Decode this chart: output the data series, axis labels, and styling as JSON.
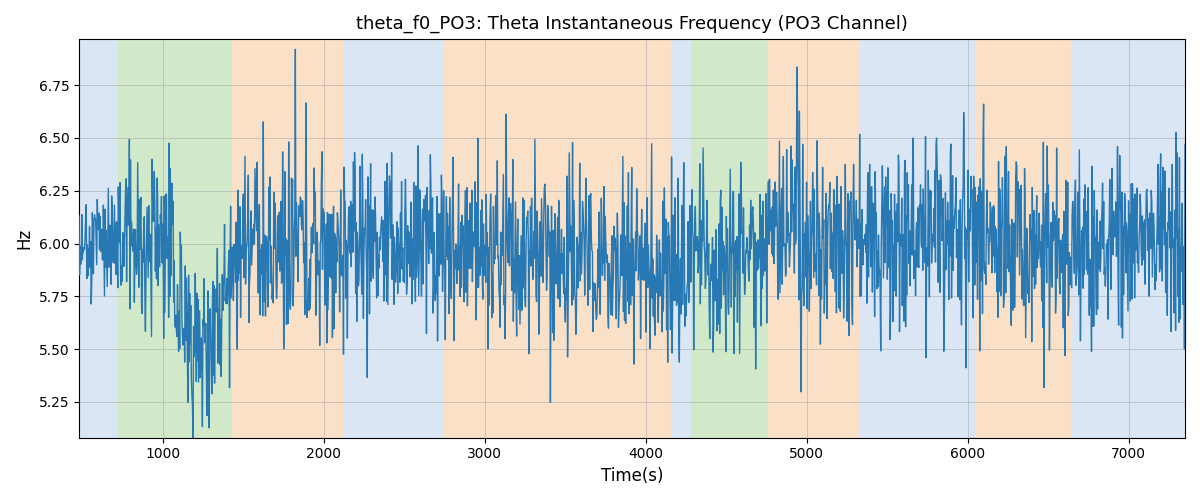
{
  "title": "theta_f0_PO3: Theta Instantaneous Frequency (PO3 Channel)",
  "xlabel": "Time(s)",
  "ylabel": "Hz",
  "xlim": [
    480,
    7350
  ],
  "ylim": [
    5.08,
    6.97
  ],
  "background_bands": [
    {
      "xmin": 480,
      "xmax": 720,
      "color": "#adc9e8",
      "alpha": 0.45
    },
    {
      "xmin": 720,
      "xmax": 1430,
      "color": "#90c878",
      "alpha": 0.4
    },
    {
      "xmin": 1430,
      "xmax": 2120,
      "color": "#f5c89a",
      "alpha": 0.55
    },
    {
      "xmin": 2120,
      "xmax": 2750,
      "color": "#adc9e8",
      "alpha": 0.45
    },
    {
      "xmin": 2750,
      "xmax": 4160,
      "color": "#f5c89a",
      "alpha": 0.55
    },
    {
      "xmin": 4160,
      "xmax": 4280,
      "color": "#adc9e8",
      "alpha": 0.45
    },
    {
      "xmin": 4280,
      "xmax": 4760,
      "color": "#90c878",
      "alpha": 0.4
    },
    {
      "xmin": 4760,
      "xmax": 5330,
      "color": "#f5c89a",
      "alpha": 0.55
    },
    {
      "xmin": 5330,
      "xmax": 6050,
      "color": "#adc9e8",
      "alpha": 0.45
    },
    {
      "xmin": 6050,
      "xmax": 6640,
      "color": "#f5c89a",
      "alpha": 0.55
    },
    {
      "xmin": 6640,
      "xmax": 7350,
      "color": "#adc9e8",
      "alpha": 0.45
    }
  ],
  "line_color": "#2878b4",
  "line_width": 1.0,
  "seed": 12345,
  "n_points": 2000,
  "signal_mean": 5.98,
  "title_fontsize": 13,
  "label_fontsize": 12,
  "tick_fontsize": 10,
  "figsize": [
    12,
    5
  ],
  "dpi": 100,
  "xticks": [
    1000,
    2000,
    3000,
    4000,
    5000,
    6000,
    7000
  ],
  "yticks": [
    5.25,
    5.5,
    5.75,
    6.0,
    6.25,
    6.5,
    6.75
  ]
}
